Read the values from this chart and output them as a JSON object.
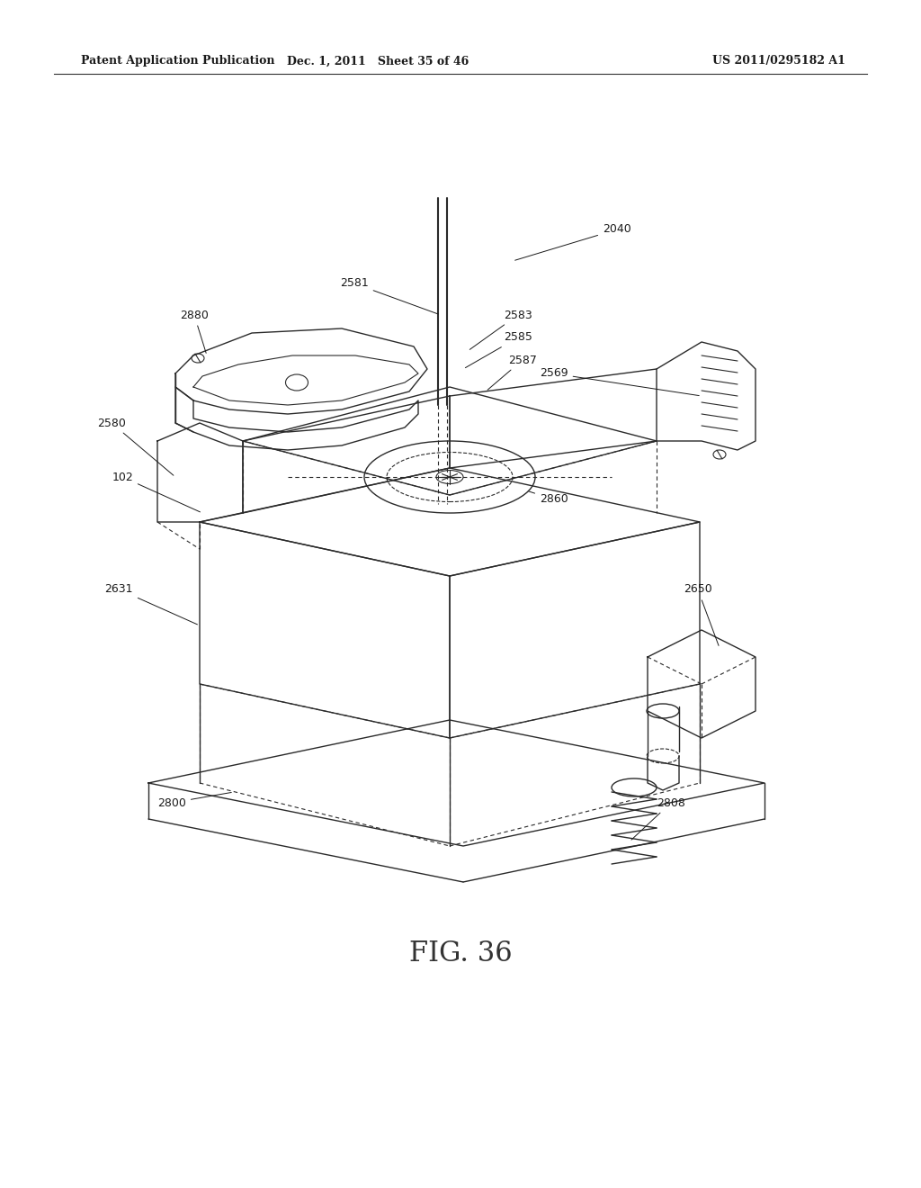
{
  "background_color": "#ffffff",
  "header_left": "Patent Application Publication",
  "header_center": "Dec. 1, 2011   Sheet 35 of 46",
  "header_right": "US 2011/0295182 A1",
  "figure_label": "FIG. 36",
  "fig_label_fontsize": 22,
  "header_fontsize": 9,
  "label_fontsize": 9,
  "line_color": "#2a2a2a",
  "label_color": "#1a1a1a"
}
